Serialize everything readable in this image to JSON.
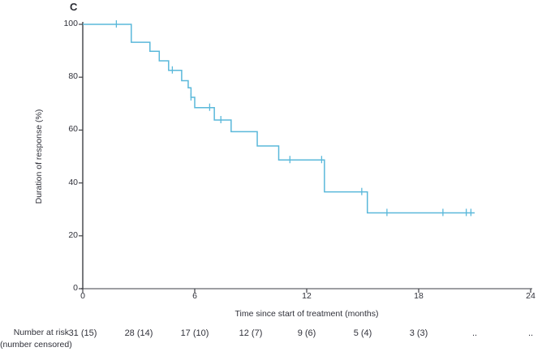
{
  "figure": {
    "panel_label": "C",
    "background_color": "#ffffff",
    "curve_color": "#5ab8da",
    "y_axis_color": "#3f4045",
    "x_axis_line_color": "#8f9094",
    "text_color": "#30313a"
  },
  "chart_data": {
    "type": "line",
    "subtype": "kaplan-meier-step-curve",
    "panel_label": "C",
    "title": "",
    "xlabel": "Time since start of treatment (months)",
    "ylabel": "Duration of response (%)",
    "xlim": [
      0,
      24
    ],
    "ylim": [
      0,
      100
    ],
    "x_ticks": [
      0,
      6,
      12,
      18,
      24
    ],
    "y_ticks": [
      0,
      20,
      40,
      60,
      80,
      100
    ],
    "grid": false,
    "legend": "none",
    "series": [
      {
        "name": "Duration of response",
        "color": "#5ab8da",
        "steps": [
          [
            0,
            100
          ],
          [
            2.6,
            93.2
          ],
          [
            3.6,
            89.8
          ],
          [
            4.1,
            86.2
          ],
          [
            4.6,
            82.6
          ],
          [
            5.3,
            78.7
          ],
          [
            5.65,
            76.0
          ],
          [
            5.8,
            72.4
          ],
          [
            6.0,
            68.5
          ],
          [
            7.05,
            63.8
          ],
          [
            7.95,
            59.4
          ],
          [
            9.35,
            54.0
          ],
          [
            10.5,
            48.7
          ],
          [
            12.95,
            36.6
          ],
          [
            15.25,
            28.7
          ]
        ],
        "end_time": 21.0,
        "censor_marks": [
          [
            1.8,
            100
          ],
          [
            4.8,
            82.6
          ],
          [
            5.8,
            72.4
          ],
          [
            6.8,
            68.5
          ],
          [
            7.4,
            63.8
          ],
          [
            11.1,
            48.7
          ],
          [
            12.8,
            48.7
          ],
          [
            14.95,
            36.6
          ],
          [
            16.3,
            28.7
          ],
          [
            19.3,
            28.7
          ],
          [
            20.55,
            28.7
          ],
          [
            20.8,
            28.7
          ]
        ]
      }
    ],
    "at_risk_table": {
      "row_label_line1": "Number at risk",
      "row_label_line2": "(number censored)",
      "times": [
        0,
        3,
        6,
        9,
        12,
        15,
        18,
        21,
        24
      ],
      "values": [
        "31 (15)",
        "28 (14)",
        "17 (10)",
        "12 (7)",
        "9 (6)",
        "5 (4)",
        "3 (3)",
        "..",
        ".."
      ]
    }
  }
}
